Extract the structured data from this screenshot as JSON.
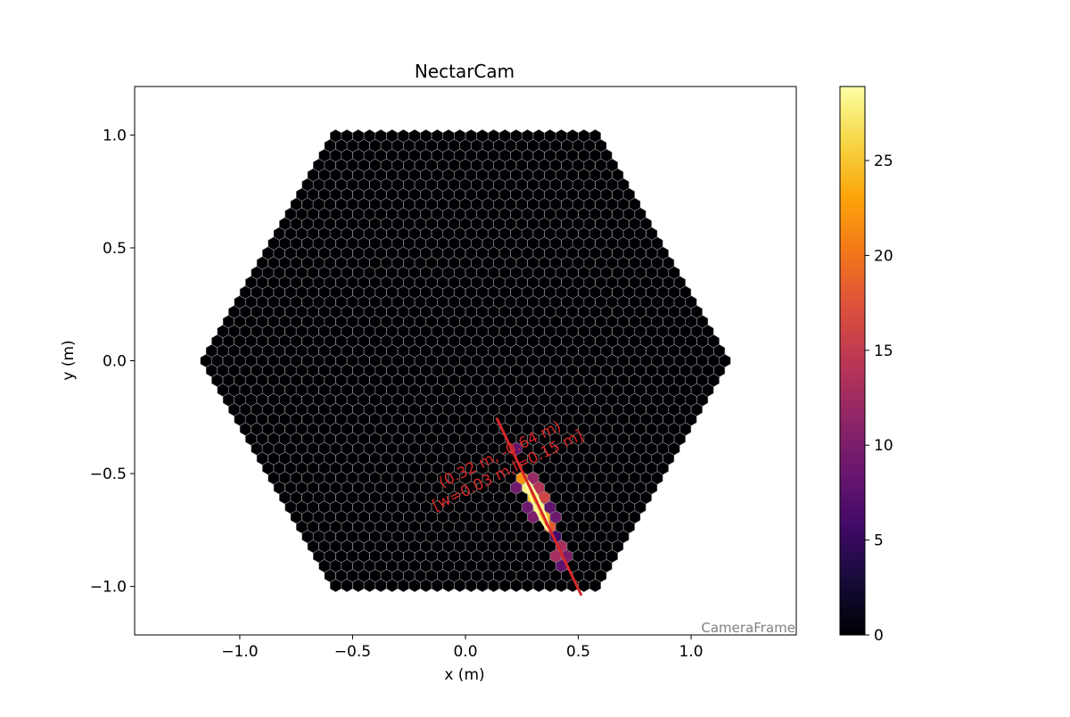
{
  "chart_data": {
    "type": "camera",
    "title": "NectarCam",
    "x_label": "x  (m)",
    "y_label": "y  (m)",
    "xlim": [
      -1.466,
      1.466
    ],
    "ylim": [
      -1.215,
      1.215
    ],
    "xticks": [
      {
        "value": -1.0,
        "label": "−1.0"
      },
      {
        "value": -0.5,
        "label": "−0.5"
      },
      {
        "value": 0,
        "label": "0.0"
      },
      {
        "value": 0.5,
        "label": "0.5"
      },
      {
        "value": 1.0,
        "label": "1.0"
      }
    ],
    "yticks": [
      {
        "value": -1.0,
        "label": "−1.0"
      },
      {
        "value": -0.5,
        "label": "−0.5"
      },
      {
        "value": 0,
        "label": "0.0"
      },
      {
        "value": 0.5,
        "label": "0.5"
      },
      {
        "value": 1.0,
        "label": "1.0"
      }
    ],
    "colormap": "inferno",
    "clim": [
      0,
      28.9
    ],
    "cticks": [
      0,
      5,
      10,
      15,
      20,
      25
    ],
    "pixels": {
      "x": [
        0.225,
        0.25,
        0.3,
        0.275,
        0.325,
        0.225,
        0.3,
        0.35,
        0.325,
        0.375,
        0.275,
        0.35,
        0.4,
        0.3,
        0.375,
        0.4,
        0.425,
        0.4,
        0.45,
        0.425
      ],
      "y": [
        -0.39,
        -0.52,
        -0.52,
        -0.563,
        -0.563,
        -0.563,
        -0.606,
        -0.606,
        -0.65,
        -0.65,
        -0.65,
        -0.693,
        -0.693,
        -0.693,
        -0.736,
        -0.779,
        -0.823,
        -0.866,
        -0.866,
        -0.909
      ],
      "values": [
        8,
        22,
        12,
        28,
        14,
        9,
        25,
        16,
        27,
        8,
        9,
        24,
        9,
        10,
        18,
        6,
        13,
        13,
        10,
        8
      ]
    },
    "axis_line": {
      "x": [
        0.138,
        0.514
      ],
      "y": [
        -0.253,
        -1.04
      ],
      "color": "#d62728"
    },
    "ellipse": {
      "x": 0.32,
      "y": -0.64,
      "width": 0.03,
      "length": 0.15,
      "angle": -66
    },
    "annotations": [
      "(0.32 m, -0.64 m)",
      "[w=0.03 m,l=0.15 m]"
    ],
    "frame_label": "CameraFrame"
  }
}
